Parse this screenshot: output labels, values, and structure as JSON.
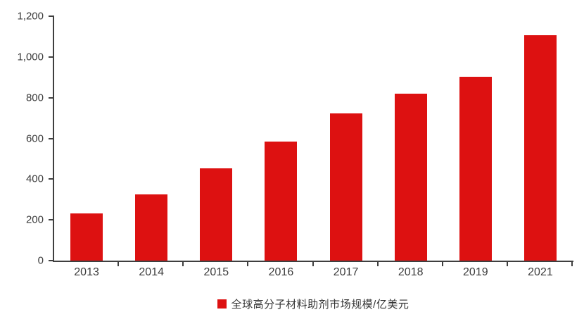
{
  "chart_data": {
    "type": "bar",
    "categories": [
      "2013",
      "2014",
      "2015",
      "2016",
      "2017",
      "2018",
      "2019",
      "2021"
    ],
    "series": [
      {
        "name": "全球高分子材料助剂市场规模/亿美元",
        "values": [
          232,
          326,
          452,
          583,
          722,
          818,
          904,
          1108
        ]
      }
    ],
    "title": "",
    "xlabel": "",
    "ylabel": "",
    "ylim": [
      0,
      1200
    ],
    "y_ticks": [
      0,
      200,
      400,
      600,
      800,
      1000,
      1200
    ],
    "y_tick_labels": [
      "0",
      "200",
      "400",
      "600",
      "800",
      "1,000",
      "1,200"
    ],
    "grid": false,
    "legend_position": "bottom",
    "bar_color": "#dd1111",
    "axis_color": "#3f3f3f",
    "text_color": "#3c3c3c"
  },
  "legend": {
    "label": "全球高分子材料助剂市场规模/亿美元",
    "swatch_color": "#dd1111"
  }
}
